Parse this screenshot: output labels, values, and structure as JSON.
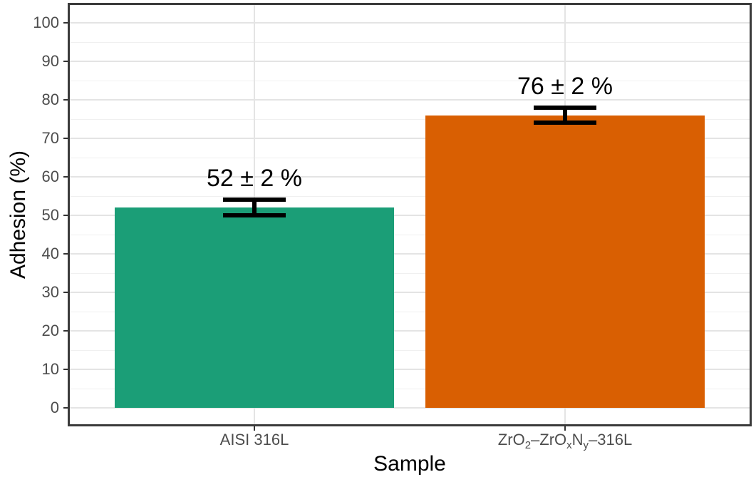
{
  "chart_data": {
    "type": "bar",
    "title": "",
    "xlabel": "Sample",
    "ylabel": "Adhesion (%)",
    "ylim": [
      0,
      100
    ],
    "yticks": [
      0,
      10,
      20,
      30,
      40,
      50,
      60,
      70,
      80,
      90,
      100
    ],
    "grid": "major+minor",
    "legend": "none",
    "categories": [
      {
        "id": "aisi-316l",
        "label_text": "AISI 316L",
        "label_segments": [
          {
            "t": "AISI 316L",
            "sub": false
          }
        ]
      },
      {
        "id": "zro2-zroxny-316l",
        "label_text": "ZrO2–ZrOxNy–316L",
        "label_segments": [
          {
            "t": "ZrO",
            "sub": false
          },
          {
            "t": "2",
            "sub": true
          },
          {
            "t": "–ZrO",
            "sub": false
          },
          {
            "t": "x",
            "sub": true
          },
          {
            "t": "N",
            "sub": false
          },
          {
            "t": "y",
            "sub": true
          },
          {
            "t": "–316L",
            "sub": false
          }
        ]
      }
    ],
    "series": [
      {
        "name": "Adhesion",
        "values": [
          52,
          76
        ],
        "errors": [
          2,
          2
        ],
        "annotations": [
          "52 ± 2 %",
          "76 ± 2 %"
        ]
      }
    ],
    "bar_colors": [
      "#1b9e77",
      "#d95f02"
    ],
    "colors": {
      "panel_border": "#3b3b3b",
      "grid_major": "#e4e4e4",
      "grid_minor": "#f0f0f0",
      "tick_mark": "#333333",
      "tick_label": "#4d4d4d",
      "error_bar": "#000000",
      "annotation_text": "#000000",
      "axis_title_text": "#000000"
    }
  }
}
